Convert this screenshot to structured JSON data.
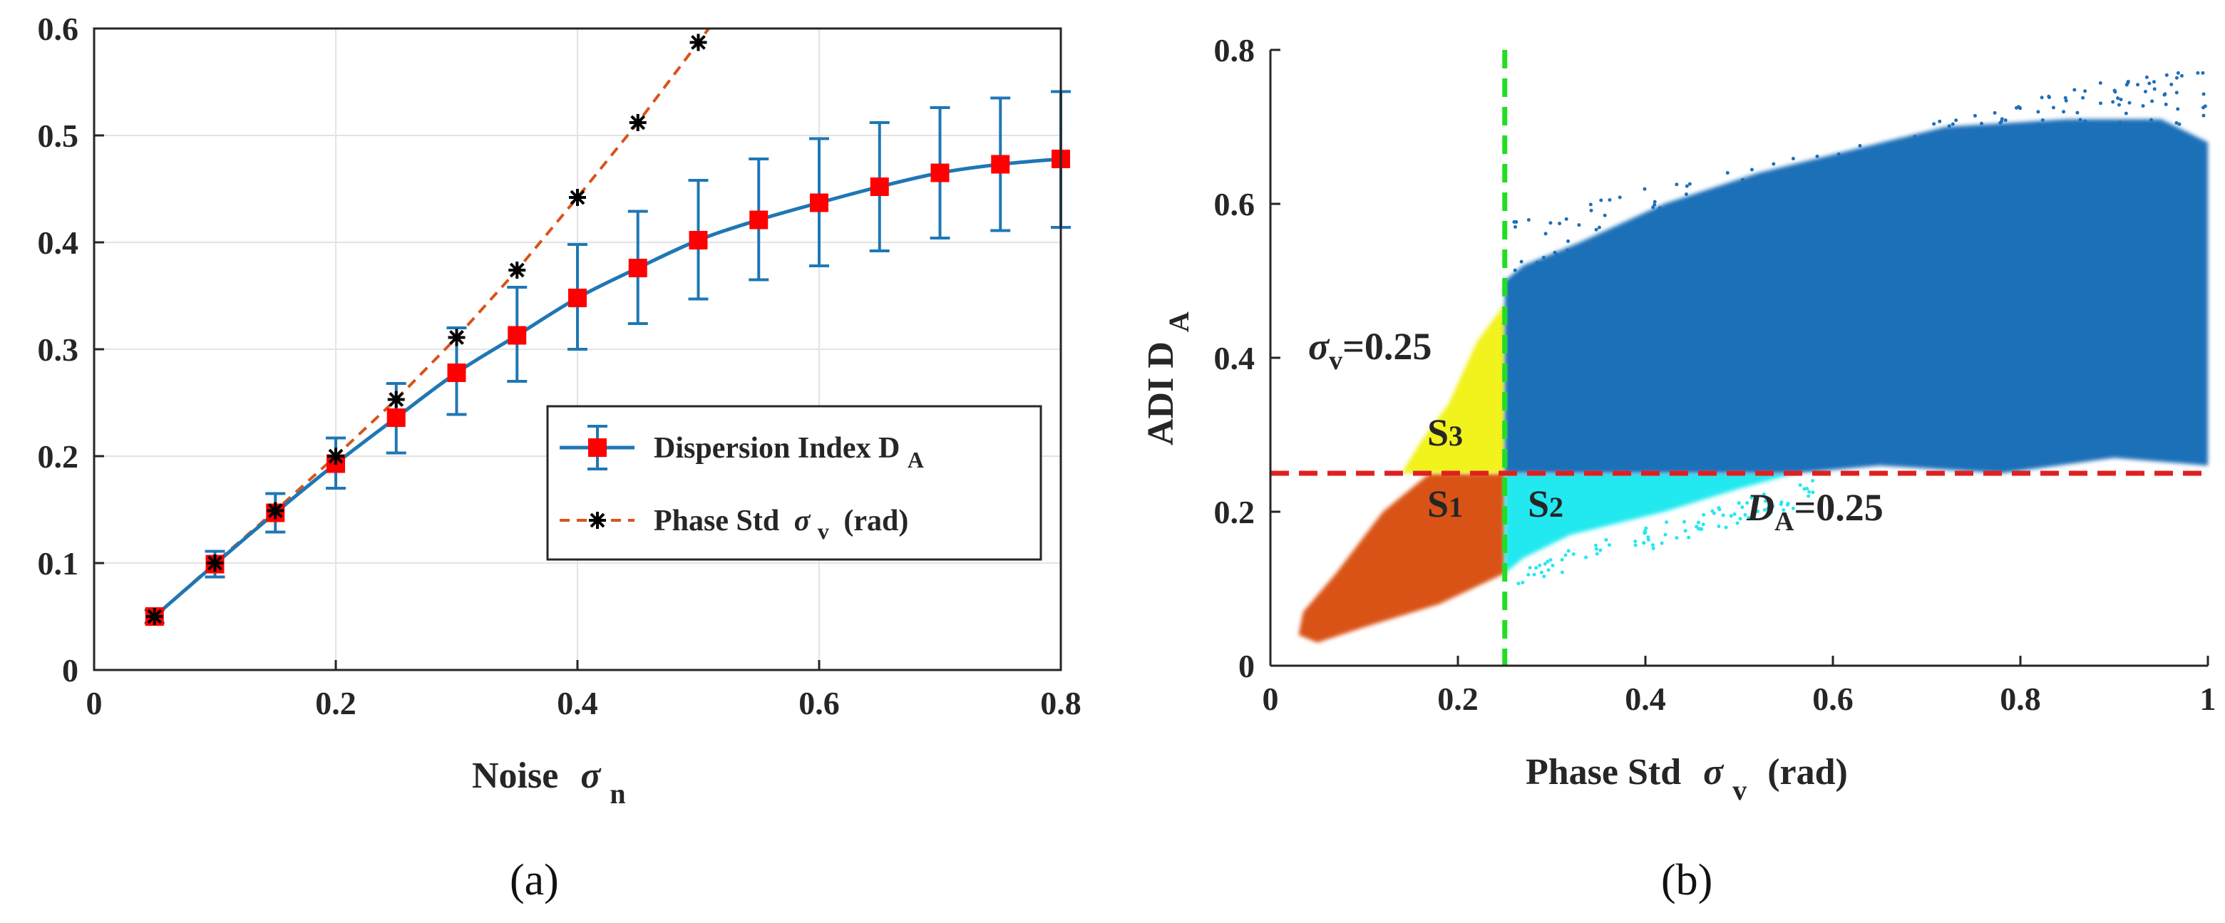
{
  "chart_data": [
    {
      "type": "line",
      "panel_label": "(a)",
      "xlabel": "Noise",
      "xlabel_symbol": "σ",
      "xlabel_sub": "n",
      "ylabel": "",
      "xlim": [
        0,
        0.8
      ],
      "ylim": [
        0,
        0.6
      ],
      "xticks": [
        "0",
        "0.2",
        "0.4",
        "0.6",
        "0.8"
      ],
      "yticks": [
        "0",
        "0.1",
        "0.2",
        "0.3",
        "0.4",
        "0.5",
        "0.6"
      ],
      "grid": true,
      "legend_position": "center-right",
      "series": [
        {
          "name": "Dispersion Index D",
          "name_sub": "A",
          "color": "#1f77b4",
          "marker": "square",
          "marker_color": "#ff0000",
          "x": [
            0.05,
            0.1,
            0.15,
            0.2,
            0.25,
            0.3,
            0.35,
            0.4,
            0.45,
            0.5,
            0.55,
            0.6,
            0.65,
            0.7,
            0.75,
            0.8
          ],
          "y": [
            0.05,
            0.099,
            0.147,
            0.193,
            0.236,
            0.278,
            0.313,
            0.348,
            0.376,
            0.402,
            0.421,
            0.437,
            0.452,
            0.465,
            0.473,
            0.478
          ],
          "err_low": [
            0.006,
            0.012,
            0.018,
            0.023,
            0.033,
            0.039,
            0.043,
            0.048,
            0.052,
            0.055,
            0.056,
            0.059,
            0.06,
            0.061,
            0.062,
            0.064
          ],
          "err_high": [
            0.006,
            0.012,
            0.018,
            0.024,
            0.032,
            0.042,
            0.045,
            0.05,
            0.053,
            0.056,
            0.057,
            0.06,
            0.06,
            0.061,
            0.062,
            0.063
          ]
        },
        {
          "name": "Phase Std",
          "name_symbol": "σ",
          "name_sub": "v",
          "name_unit": "(rad)",
          "color": "#d95319",
          "marker": "asterisk",
          "marker_color": "#000000",
          "x": [
            0.05,
            0.1,
            0.15,
            0.2,
            0.25,
            0.3,
            0.35,
            0.4,
            0.45,
            0.5
          ],
          "y": [
            0.05,
            0.1,
            0.149,
            0.2,
            0.253,
            0.311,
            0.374,
            0.442,
            0.512,
            0.587
          ]
        }
      ]
    },
    {
      "type": "scatter",
      "panel_label": "(b)",
      "xlabel": "Phase Std",
      "xlabel_symbol": "σ",
      "xlabel_sub": "v",
      "xlabel_unit": "(rad)",
      "ylabel": "ADI  D",
      "ylabel_sub": "A",
      "xlim": [
        0,
        1
      ],
      "ylim": [
        0,
        0.8
      ],
      "xticks": [
        "0",
        "0.2",
        "0.4",
        "0.6",
        "0.8",
        "1"
      ],
      "yticks": [
        "0",
        "0.2",
        "0.4",
        "0.6",
        "0.8"
      ],
      "thresholds": {
        "vertical": {
          "value": 0.25,
          "color": "#22dd22",
          "label_symbol": "σ",
          "label_sub": "v",
          "label_value": "=0.25"
        },
        "horizontal": {
          "value": 0.25,
          "color": "#e02020",
          "label_symbol": "D",
          "label_sub": "A",
          "label_value": "=0.25"
        }
      },
      "regions": [
        {
          "name": "S",
          "sub": "1",
          "color": "#d95319"
        },
        {
          "name": "S",
          "sub": "2",
          "color": "#22e8f0"
        },
        {
          "name": "S",
          "sub": "3",
          "color": "#f2f21a"
        },
        {
          "name": "",
          "sub": "",
          "color": "#1f6fb8"
        }
      ]
    }
  ]
}
